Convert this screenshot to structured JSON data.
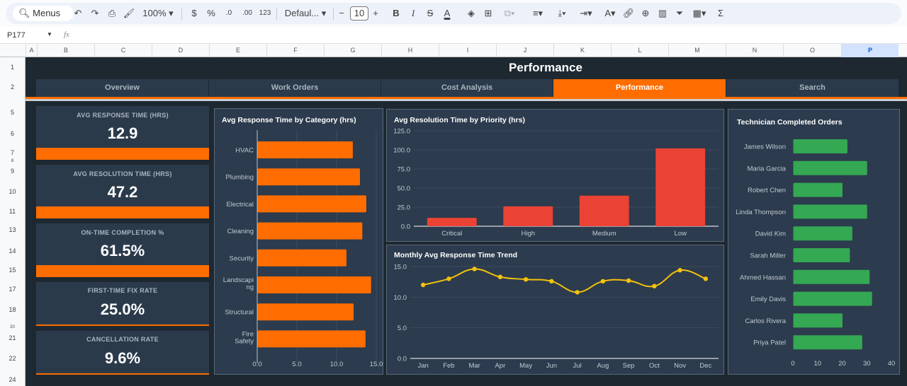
{
  "toolbar": {
    "menus": "Menus",
    "zoom": "100%",
    "currency": "$",
    "percent": "%",
    "dec_less": ".0",
    "dec_more": ".00",
    "format123": "123",
    "font": "Defaul...",
    "font_size": "10",
    "bold": "B",
    "italic": "I",
    "strike": "S",
    "textcolor": "A",
    "sigma": "Σ"
  },
  "formula_bar": {
    "cell_ref": "P177",
    "fx": "fx",
    "value": ""
  },
  "columns": [
    "A",
    "B",
    "C",
    "D",
    "E",
    "F",
    "G",
    "H",
    "I",
    "J",
    "K",
    "L",
    "M",
    "N",
    "O",
    "P"
  ],
  "rows": [
    "1",
    "2",
    "5",
    "6",
    "7",
    "8",
    "9",
    "10",
    "11",
    "13",
    "14",
    "15",
    "17",
    "18",
    "20",
    "21",
    "22",
    "24"
  ],
  "dashboard": {
    "title": "Performance",
    "tabs": [
      {
        "label": "Overview"
      },
      {
        "label": "Work Orders"
      },
      {
        "label": "Cost Analysis"
      },
      {
        "label": "Performance",
        "active": true
      },
      {
        "label": "Search"
      }
    ],
    "kpis": [
      {
        "label": "AVG RESPONSE TIME (HRS)",
        "value": "12.9"
      },
      {
        "label": "AVG RESOLUTION TIME (HRS)",
        "value": "47.2"
      },
      {
        "label": "ON-TIME COMPLETION %",
        "value": "61.5%"
      },
      {
        "label": "FIRST-TIME FIX RATE",
        "value": "25.0%"
      },
      {
        "label": "CANCELLATION RATE",
        "value": "9.6%"
      }
    ],
    "colors": {
      "accent": "#ff6d00",
      "bg": "#1e2831",
      "panel": "#2c3b4d",
      "red": "#ea4335",
      "green": "#34a853",
      "yellow": "#f4c20d"
    }
  },
  "chart_data": [
    {
      "type": "bar",
      "orientation": "horizontal",
      "title": "Avg Response Time by Category (hrs)",
      "categories": [
        "HVAC",
        "Plumbing",
        "Electrical",
        "Cleaning",
        "Security",
        "Landscaping",
        "Structural",
        "Fire Safety"
      ],
      "values": [
        12.0,
        12.9,
        13.7,
        13.2,
        11.2,
        14.3,
        12.1,
        13.6
      ],
      "xlim": [
        0,
        15
      ],
      "ticks": [
        "0.0",
        "5.0",
        "10.0",
        "15.0"
      ],
      "color": "#ff6d00"
    },
    {
      "type": "bar",
      "title": "Avg Resolution Time by Priority (hrs)",
      "categories": [
        "Critical",
        "High",
        "Medium",
        "Low"
      ],
      "values": [
        11,
        26,
        40,
        102
      ],
      "ylim": [
        0,
        125
      ],
      "ticks": [
        "0.0",
        "25.0",
        "50.0",
        "75.0",
        "100.0",
        "125.0"
      ],
      "color": "#ea4335"
    },
    {
      "type": "line",
      "title": "Monthly Avg Response Time Trend",
      "categories": [
        "Jan",
        "Feb",
        "Mar",
        "Apr",
        "May",
        "Jun",
        "Jul",
        "Aug",
        "Sep",
        "Oct",
        "Nov",
        "Dec"
      ],
      "values": [
        12.0,
        13.0,
        14.6,
        13.3,
        12.9,
        12.6,
        10.8,
        12.6,
        12.7,
        11.8,
        14.4,
        13.0
      ],
      "ylim": [
        0,
        15
      ],
      "ticks": [
        "0.0",
        "5.0",
        "10.0",
        "15.0"
      ],
      "color": "#f4c20d"
    },
    {
      "type": "bar",
      "orientation": "horizontal",
      "title": "Technician Completed Orders",
      "categories": [
        "James Wilson",
        "Maria Garcia",
        "Robert Chen",
        "Linda Thompson",
        "David Kim",
        "Sarah Miller",
        "Ahmed Hassan",
        "Emily Davis",
        "Carlos Rivera",
        "Priya Patel"
      ],
      "values": [
        22,
        30,
        20,
        30,
        24,
        23,
        31,
        32,
        20,
        28
      ],
      "xlim": [
        0,
        40
      ],
      "ticks": [
        "0",
        "10",
        "20",
        "30",
        "40"
      ],
      "color": "#34a853"
    }
  ]
}
